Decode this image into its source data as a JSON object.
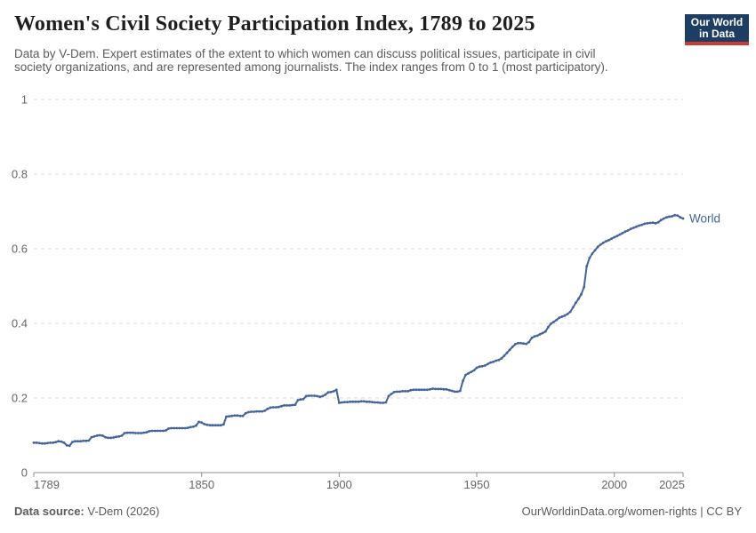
{
  "header": {
    "title": "Women's Civil Society Participation Index, 1789 to 2025",
    "subtitle_lines": [
      "Data by V-Dem. Expert estimates of the extent to which women can discuss political issues, participate in civil",
      "society organizations, and are represented among journalists. The index ranges from 0 to 1 (most participatory)."
    ],
    "logo": {
      "line1": "Our World",
      "line2": "in Data",
      "bg_color": "#1d3d63",
      "stripe_color": "#cc3b31"
    }
  },
  "chart_data": {
    "type": "line",
    "title": "Women's Civil Society Participation Index, 1789 to 2025",
    "xlabel": "",
    "ylabel": "",
    "xlim": [
      1789,
      2025
    ],
    "ylim": [
      0,
      1
    ],
    "x_ticks": [
      1789,
      1850,
      1900,
      1950,
      2000,
      2025
    ],
    "y_ticks": [
      0,
      0.2,
      0.4,
      0.6,
      0.8,
      1
    ],
    "grid": "horizontal-dashed",
    "legend": "end-of-line-label",
    "series": [
      {
        "name": "World",
        "color": "#44639C",
        "points": [
          [
            1789,
            0.08
          ],
          [
            1790,
            0.08
          ],
          [
            1791,
            0.079
          ],
          [
            1792,
            0.078
          ],
          [
            1793,
            0.078
          ],
          [
            1794,
            0.079
          ],
          [
            1795,
            0.08
          ],
          [
            1796,
            0.08
          ],
          [
            1797,
            0.082
          ],
          [
            1798,
            0.084
          ],
          [
            1799,
            0.083
          ],
          [
            1800,
            0.08
          ],
          [
            1801,
            0.073
          ],
          [
            1802,
            0.072
          ],
          [
            1803,
            0.082
          ],
          [
            1804,
            0.084
          ],
          [
            1805,
            0.084
          ],
          [
            1806,
            0.084
          ],
          [
            1807,
            0.085
          ],
          [
            1808,
            0.085
          ],
          [
            1809,
            0.086
          ],
          [
            1810,
            0.095
          ],
          [
            1811,
            0.097
          ],
          [
            1812,
            0.099
          ],
          [
            1813,
            0.1
          ],
          [
            1814,
            0.099
          ],
          [
            1815,
            0.095
          ],
          [
            1816,
            0.093
          ],
          [
            1817,
            0.093
          ],
          [
            1818,
            0.094
          ],
          [
            1819,
            0.096
          ],
          [
            1820,
            0.097
          ],
          [
            1821,
            0.099
          ],
          [
            1822,
            0.106
          ],
          [
            1823,
            0.107
          ],
          [
            1824,
            0.107
          ],
          [
            1825,
            0.107
          ],
          [
            1826,
            0.106
          ],
          [
            1827,
            0.106
          ],
          [
            1828,
            0.106
          ],
          [
            1829,
            0.107
          ],
          [
            1830,
            0.108
          ],
          [
            1831,
            0.111
          ],
          [
            1832,
            0.112
          ],
          [
            1833,
            0.112
          ],
          [
            1834,
            0.112
          ],
          [
            1835,
            0.112
          ],
          [
            1836,
            0.112
          ],
          [
            1837,
            0.113
          ],
          [
            1838,
            0.118
          ],
          [
            1839,
            0.119
          ],
          [
            1840,
            0.119
          ],
          [
            1841,
            0.119
          ],
          [
            1842,
            0.119
          ],
          [
            1843,
            0.119
          ],
          [
            1844,
            0.119
          ],
          [
            1845,
            0.12
          ],
          [
            1846,
            0.122
          ],
          [
            1847,
            0.123
          ],
          [
            1848,
            0.126
          ],
          [
            1849,
            0.136
          ],
          [
            1850,
            0.134
          ],
          [
            1851,
            0.13
          ],
          [
            1852,
            0.128
          ],
          [
            1853,
            0.127
          ],
          [
            1854,
            0.127
          ],
          [
            1855,
            0.127
          ],
          [
            1856,
            0.127
          ],
          [
            1857,
            0.127
          ],
          [
            1858,
            0.129
          ],
          [
            1859,
            0.15
          ],
          [
            1860,
            0.151
          ],
          [
            1861,
            0.152
          ],
          [
            1862,
            0.153
          ],
          [
            1863,
            0.153
          ],
          [
            1864,
            0.152
          ],
          [
            1865,
            0.152
          ],
          [
            1866,
            0.159
          ],
          [
            1867,
            0.162
          ],
          [
            1868,
            0.163
          ],
          [
            1869,
            0.163
          ],
          [
            1870,
            0.164
          ],
          [
            1871,
            0.164
          ],
          [
            1872,
            0.164
          ],
          [
            1873,
            0.166
          ],
          [
            1874,
            0.171
          ],
          [
            1875,
            0.174
          ],
          [
            1876,
            0.175
          ],
          [
            1877,
            0.175
          ],
          [
            1878,
            0.176
          ],
          [
            1879,
            0.178
          ],
          [
            1880,
            0.18
          ],
          [
            1881,
            0.18
          ],
          [
            1882,
            0.18
          ],
          [
            1883,
            0.181
          ],
          [
            1884,
            0.182
          ],
          [
            1885,
            0.194
          ],
          [
            1886,
            0.196
          ],
          [
            1887,
            0.197
          ],
          [
            1888,
            0.205
          ],
          [
            1889,
            0.206
          ],
          [
            1890,
            0.206
          ],
          [
            1891,
            0.206
          ],
          [
            1892,
            0.205
          ],
          [
            1893,
            0.203
          ],
          [
            1894,
            0.205
          ],
          [
            1895,
            0.209
          ],
          [
            1896,
            0.215
          ],
          [
            1897,
            0.216
          ],
          [
            1898,
            0.218
          ],
          [
            1899,
            0.222
          ],
          [
            1900,
            0.187
          ],
          [
            1901,
            0.188
          ],
          [
            1902,
            0.189
          ],
          [
            1903,
            0.189
          ],
          [
            1904,
            0.19
          ],
          [
            1905,
            0.19
          ],
          [
            1906,
            0.19
          ],
          [
            1907,
            0.19
          ],
          [
            1908,
            0.191
          ],
          [
            1909,
            0.191
          ],
          [
            1910,
            0.19
          ],
          [
            1911,
            0.19
          ],
          [
            1912,
            0.189
          ],
          [
            1913,
            0.188
          ],
          [
            1914,
            0.188
          ],
          [
            1915,
            0.187
          ],
          [
            1916,
            0.187
          ],
          [
            1917,
            0.188
          ],
          [
            1918,
            0.205
          ],
          [
            1919,
            0.211
          ],
          [
            1920,
            0.216
          ],
          [
            1921,
            0.217
          ],
          [
            1922,
            0.217
          ],
          [
            1923,
            0.218
          ],
          [
            1924,
            0.218
          ],
          [
            1925,
            0.218
          ],
          [
            1926,
            0.221
          ],
          [
            1927,
            0.222
          ],
          [
            1928,
            0.222
          ],
          [
            1929,
            0.222
          ],
          [
            1930,
            0.222
          ],
          [
            1931,
            0.222
          ],
          [
            1932,
            0.222
          ],
          [
            1933,
            0.223
          ],
          [
            1934,
            0.225
          ],
          [
            1935,
            0.224
          ],
          [
            1936,
            0.224
          ],
          [
            1937,
            0.224
          ],
          [
            1938,
            0.223
          ],
          [
            1939,
            0.223
          ],
          [
            1940,
            0.221
          ],
          [
            1941,
            0.219
          ],
          [
            1942,
            0.217
          ],
          [
            1943,
            0.217
          ],
          [
            1944,
            0.219
          ],
          [
            1945,
            0.246
          ],
          [
            1946,
            0.262
          ],
          [
            1947,
            0.266
          ],
          [
            1948,
            0.27
          ],
          [
            1949,
            0.274
          ],
          [
            1950,
            0.281
          ],
          [
            1951,
            0.284
          ],
          [
            1952,
            0.285
          ],
          [
            1953,
            0.287
          ],
          [
            1954,
            0.291
          ],
          [
            1955,
            0.295
          ],
          [
            1956,
            0.297
          ],
          [
            1957,
            0.3
          ],
          [
            1958,
            0.302
          ],
          [
            1959,
            0.306
          ],
          [
            1960,
            0.313
          ],
          [
            1961,
            0.321
          ],
          [
            1962,
            0.329
          ],
          [
            1963,
            0.337
          ],
          [
            1964,
            0.344
          ],
          [
            1965,
            0.347
          ],
          [
            1966,
            0.347
          ],
          [
            1967,
            0.346
          ],
          [
            1968,
            0.345
          ],
          [
            1969,
            0.35
          ],
          [
            1970,
            0.361
          ],
          [
            1971,
            0.365
          ],
          [
            1972,
            0.367
          ],
          [
            1973,
            0.371
          ],
          [
            1974,
            0.374
          ],
          [
            1975,
            0.378
          ],
          [
            1976,
            0.39
          ],
          [
            1977,
            0.399
          ],
          [
            1978,
            0.404
          ],
          [
            1979,
            0.409
          ],
          [
            1980,
            0.415
          ],
          [
            1981,
            0.418
          ],
          [
            1982,
            0.421
          ],
          [
            1983,
            0.425
          ],
          [
            1984,
            0.431
          ],
          [
            1985,
            0.443
          ],
          [
            1986,
            0.455
          ],
          [
            1987,
            0.466
          ],
          [
            1988,
            0.478
          ],
          [
            1989,
            0.497
          ],
          [
            1990,
            0.553
          ],
          [
            1991,
            0.575
          ],
          [
            1992,
            0.587
          ],
          [
            1993,
            0.596
          ],
          [
            1994,
            0.605
          ],
          [
            1995,
            0.611
          ],
          [
            1996,
            0.616
          ],
          [
            1997,
            0.62
          ],
          [
            1998,
            0.623
          ],
          [
            1999,
            0.627
          ],
          [
            2000,
            0.631
          ],
          [
            2001,
            0.634
          ],
          [
            2002,
            0.638
          ],
          [
            2003,
            0.642
          ],
          [
            2004,
            0.646
          ],
          [
            2005,
            0.649
          ],
          [
            2006,
            0.653
          ],
          [
            2007,
            0.656
          ],
          [
            2008,
            0.659
          ],
          [
            2009,
            0.662
          ],
          [
            2010,
            0.664
          ],
          [
            2011,
            0.667
          ],
          [
            2012,
            0.668
          ],
          [
            2013,
            0.669
          ],
          [
            2014,
            0.67
          ],
          [
            2015,
            0.668
          ],
          [
            2016,
            0.671
          ],
          [
            2017,
            0.677
          ],
          [
            2018,
            0.681
          ],
          [
            2019,
            0.684
          ],
          [
            2020,
            0.686
          ],
          [
            2021,
            0.687
          ],
          [
            2022,
            0.69
          ],
          [
            2023,
            0.689
          ],
          [
            2024,
            0.684
          ],
          [
            2025,
            0.681
          ]
        ]
      }
    ]
  },
  "footer": {
    "source_label": "Data source:",
    "source_value": " V-Dem (2026)",
    "attribution": "OurWorldinData.org/women-rights | CC BY"
  }
}
